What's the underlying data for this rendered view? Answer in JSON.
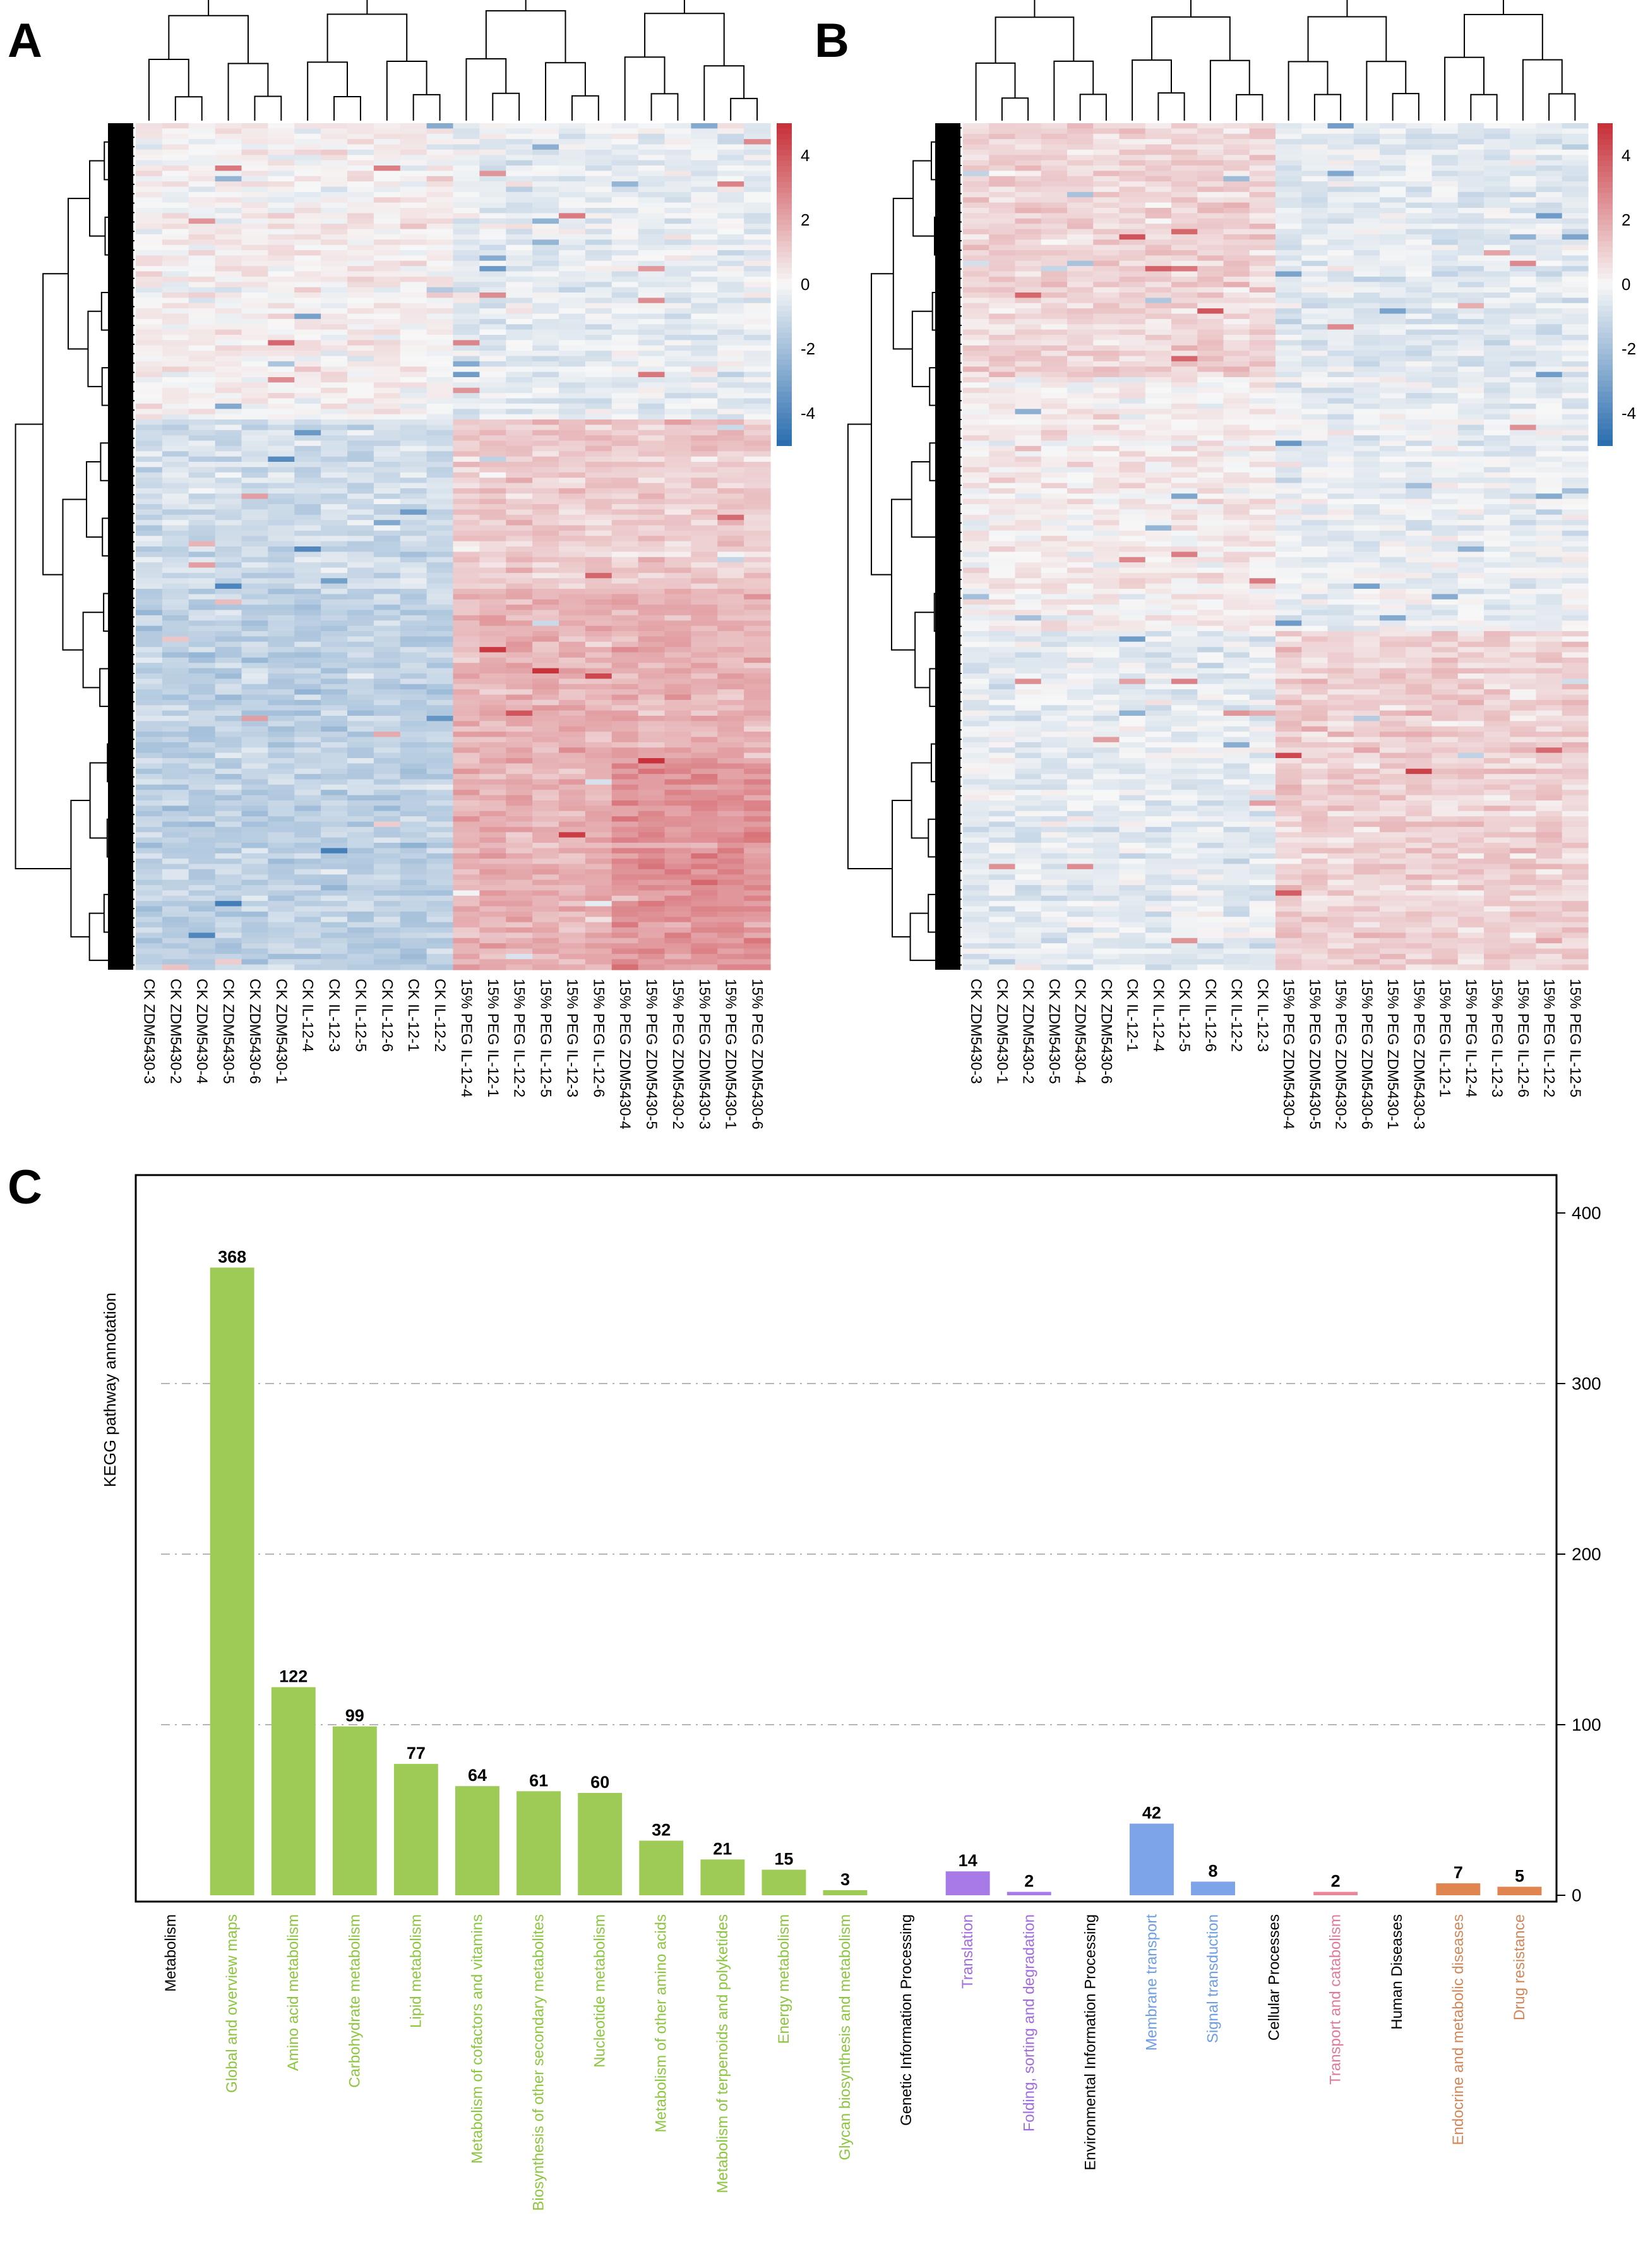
{
  "panels": {
    "a": "A",
    "b": "B",
    "c": "C"
  },
  "chart_data": [
    {
      "type": "heatmap",
      "panel": "A",
      "columns": [
        "CK ZDM5430-3",
        "CK ZDM5430-2",
        "CK ZDM5430-4",
        "CK ZDM5430-5",
        "CK ZDM5430-6",
        "CK ZDM5430-1",
        "CK IL-12-4",
        "CK IL-12-3",
        "CK IL-12-5",
        "CK IL-12-6",
        "CK IL-12-1",
        "CK IL-12-2",
        "15% PEG IL-12-4",
        "15% PEG IL-12-1",
        "15% PEG IL-12-2",
        "15% PEG IL-12-5",
        "15% PEG IL-12-3",
        "15% PEG IL-12-6",
        "15% PEG ZDM5430-4",
        "15% PEG ZDM5430-5",
        "15% PEG ZDM5430-2",
        "15% PEG ZDM5430-3",
        "15% PEG ZDM5430-1",
        "15% PEG ZDM5430-6"
      ],
      "colorbar": {
        "ticks": [
          "4",
          "2",
          "0",
          "-2",
          "-4"
        ],
        "range": [
          -5,
          5
        ],
        "low": "#2c6fb0",
        "mid": "#f7f7f7",
        "high": "#c8323b"
      }
    },
    {
      "type": "heatmap",
      "panel": "B",
      "columns": [
        "CK ZDM5430-3",
        "CK ZDM5430-1",
        "CK ZDM5430-2",
        "CK ZDM5430-5",
        "CK ZDM5430-4",
        "CK ZDM5430-6",
        "CK IL-12-1",
        "CK IL-12-4",
        "CK IL-12-5",
        "CK IL-12-6",
        "CK IL-12-2",
        "CK IL-12-3",
        "15% PEG ZDM5430-4",
        "15% PEG ZDM5430-5",
        "15% PEG ZDM5430-2",
        "15% PEG ZDM5430-6",
        "15% PEG ZDM5430-1",
        "15% PEG ZDM5430-3",
        "15% PEG IL-12-1",
        "15% PEG IL-12-4",
        "15% PEG IL-12-3",
        "15% PEG IL-12-6",
        "15% PEG IL-12-2",
        "15% PEG IL-12-5"
      ],
      "colorbar": {
        "ticks": [
          "4",
          "2",
          "0",
          "-2",
          "-4"
        ],
        "range": [
          -5,
          5
        ],
        "low": "#2c6fb0",
        "mid": "#f7f7f7",
        "high": "#c8323b"
      }
    },
    {
      "type": "bar",
      "panel": "C",
      "ylabel": "KEGG pathway annotation",
      "ylim": [
        0,
        430
      ],
      "yticks": [
        0,
        100,
        200,
        300,
        400
      ],
      "gridlines": [
        100,
        200,
        300
      ],
      "categories": [
        "Metabolism",
        "Global and overview maps",
        "Amino acid metabolism",
        "Carbohydrate metabolism",
        "Lipid metabolism",
        "Metabolism of cofactors and vitamins",
        "Biosynthesis of other secondary metabolites",
        "Nucleotide metabolism",
        "Metabolism of other amino acids",
        "Metabolism of terpenoids and polyketides",
        "Energy metabolism",
        "Glycan biosynthesis and metabolism",
        "Genetic Information Processing",
        "Translation",
        "Folding, sorting and degradation",
        "Environmental Information Processing",
        "Membrane transport",
        "Signal transduction",
        "Cellular Processes",
        "Transport and catabolism",
        "Human Diseases",
        "Endocrine and metabolic diseases",
        "Drug resistance"
      ],
      "values": [
        null,
        368,
        122,
        99,
        77,
        64,
        61,
        60,
        32,
        21,
        15,
        3,
        null,
        14,
        2,
        null,
        42,
        8,
        null,
        2,
        null,
        7,
        5
      ],
      "value_labels": [
        "",
        "368",
        "122",
        "99",
        "77",
        "64",
        "61",
        "60",
        "32",
        "21",
        "15",
        "3",
        "",
        "14",
        "2",
        "",
        "42",
        "8",
        "",
        "2",
        "",
        "7",
        "5"
      ],
      "group_colors": [
        "#000000",
        "#8cc63f",
        "#8cc63f",
        "#8cc63f",
        "#8cc63f",
        "#8cc63f",
        "#8cc63f",
        "#8cc63f",
        "#8cc63f",
        "#8cc63f",
        "#8cc63f",
        "#8cc63f",
        "#000000",
        "#a36be0",
        "#a36be0",
        "#000000",
        "#6d9ee3",
        "#6d9ee3",
        "#000000",
        "#e07a9a",
        "#000000",
        "#d2875a",
        "#d2875a"
      ],
      "bar_colors": [
        "",
        "#9dcb55",
        "#9dcb55",
        "#9dcb55",
        "#9dcb55",
        "#9dcb55",
        "#9dcb55",
        "#9dcb55",
        "#9dcb55",
        "#9dcb55",
        "#9dcb55",
        "#9dcb55",
        "",
        "#a87ae8",
        "#a87ae8",
        "",
        "#7da4e8",
        "#7da4e8",
        "",
        "#e8879a",
        "",
        "#e08450",
        "#e08450"
      ]
    }
  ]
}
